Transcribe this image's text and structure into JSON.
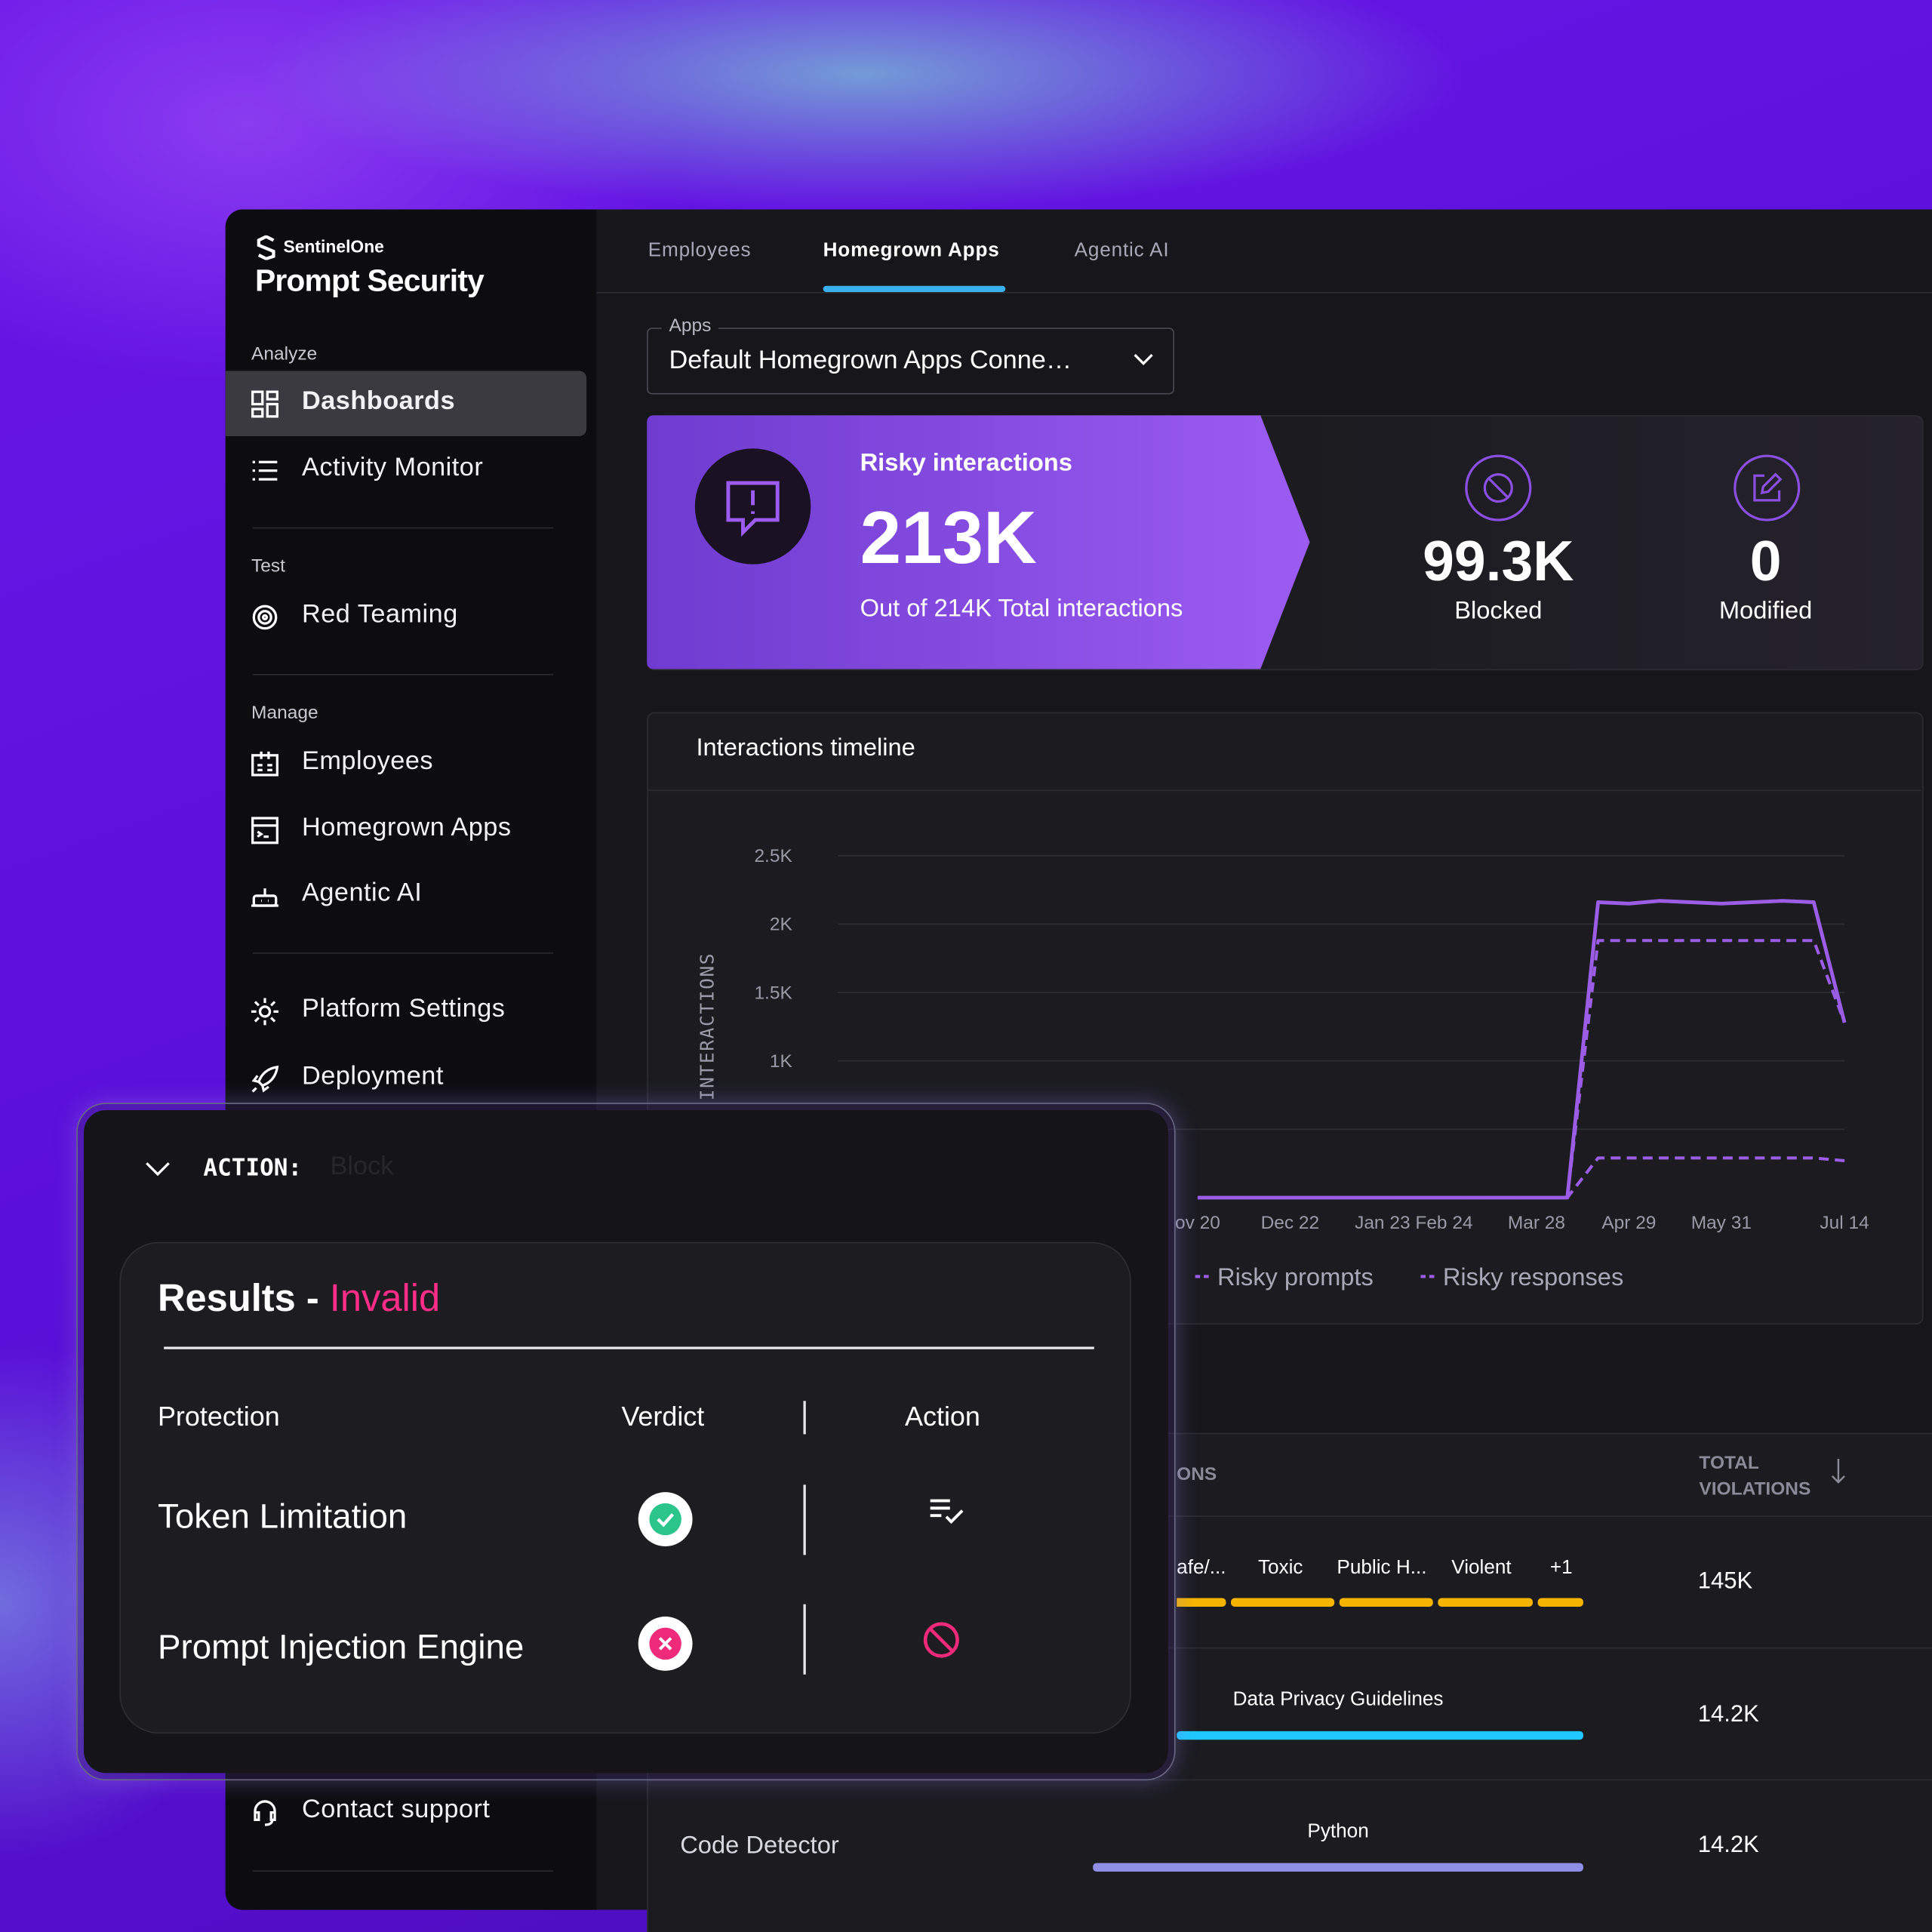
{
  "brand": {
    "company": "SentinelOne",
    "product": "Prompt Security"
  },
  "sidebar": {
    "sections": [
      {
        "heading": "Analyze",
        "items": [
          "Dashboards",
          "Activity Monitor"
        ]
      },
      {
        "heading": "Test",
        "items": [
          "Red Teaming"
        ]
      },
      {
        "heading": "Manage",
        "items": [
          "Employees",
          "Homegrown Apps",
          "Agentic AI"
        ]
      },
      {
        "items": [
          "Platform Settings",
          "Deployment"
        ]
      }
    ],
    "footer": [
      "Contact support"
    ]
  },
  "tabs": [
    "Employees",
    "Homegrown Apps",
    "Agentic AI"
  ],
  "apps_select": {
    "label": "Apps",
    "value": "Default Homegrown Apps Conne…"
  },
  "stats": {
    "risky": {
      "label": "Risky interactions",
      "value": "213K",
      "sub": "Out of 214K Total interactions"
    },
    "blocked": {
      "value": "99.3K",
      "label": "Blocked"
    },
    "modified": {
      "value": "0",
      "label": "Modified"
    }
  },
  "chart_data": {
    "type": "line",
    "title": "Interactions timeline",
    "y_label": "INTERACTIONS",
    "categories": [
      "ov 20",
      null,
      null,
      "Dec 22",
      null,
      null,
      "Jan 23",
      null,
      "Feb 24",
      null,
      null,
      "Mar 28",
      null,
      null,
      "Apr 29",
      null,
      null,
      "May 31",
      null,
      null,
      null,
      "Jul 14"
    ],
    "series": [
      {
        "color": "#9b5de5",
        "dashed": false,
        "values": [
          0,
          0,
          0,
          0,
          0,
          0,
          0,
          0,
          0,
          0,
          0,
          0,
          0,
          2160,
          2150,
          2170,
          2160,
          2150,
          2160,
          2170,
          2160,
          1280
        ]
      },
      {
        "name": "Risky prompts",
        "color": "#9b5de5",
        "dashed": true,
        "values": [
          0,
          0,
          0,
          0,
          0,
          0,
          0,
          0,
          0,
          0,
          0,
          0,
          0,
          1880,
          1880,
          1880,
          1880,
          1880,
          1880,
          1880,
          1880,
          1280
        ]
      },
      {
        "name": "Risky responses",
        "color": "#9b5de5",
        "dashed": true,
        "values": [
          0,
          0,
          0,
          0,
          0,
          0,
          0,
          0,
          0,
          0,
          0,
          0,
          0,
          290,
          290,
          290,
          290,
          290,
          290,
          290,
          290,
          270
        ]
      }
    ],
    "ylim": [
      0,
      2500
    ],
    "yticks": [
      500,
      {
        "value": 1000,
        "label": "1K"
      },
      {
        "value": 1500,
        "label": "1.5K"
      },
      {
        "value": 2000,
        "label": "2K"
      },
      {
        "value": 2500,
        "label": "2.5K"
      }
    ],
    "grid": true
  },
  "violations": {
    "columns": [
      "ONS",
      "TOTAL VIOLATIONS"
    ],
    "rows": [
      {
        "tags": [
          "afe/...",
          "Toxic",
          "Public H...",
          "Violent",
          "+1"
        ],
        "total": "145K"
      },
      {
        "tags": [
          "Data Privacy Guidelines"
        ],
        "total": "14.2K"
      },
      {
        "name": "Code Detector",
        "tags": [
          "Python"
        ],
        "total": "14.2K"
      }
    ]
  },
  "action_panel": {
    "label": "ACTION:",
    "value": "Block",
    "title": "Results -",
    "status": "Invalid",
    "columns": [
      "Protection",
      "Verdict",
      "Action"
    ],
    "rows": [
      "Token Limitation",
      "Prompt Injection Engine"
    ]
  }
}
